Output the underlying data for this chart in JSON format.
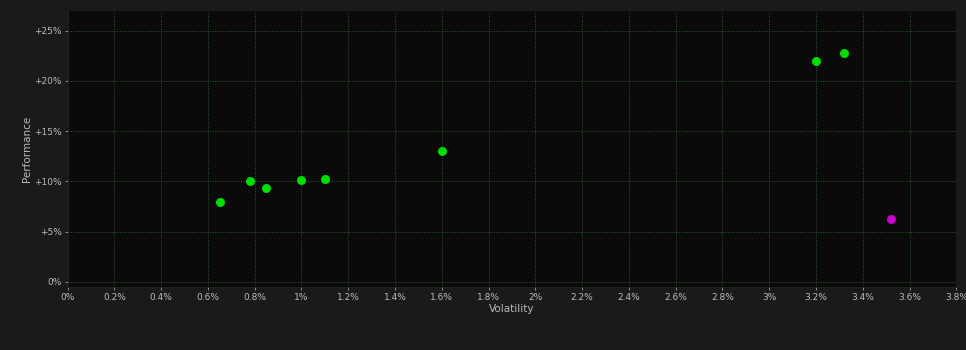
{
  "green_points": [
    [
      0.0065,
      0.08
    ],
    [
      0.0078,
      0.1
    ],
    [
      0.0085,
      0.093
    ],
    [
      0.01,
      0.101
    ],
    [
      0.011,
      0.102
    ],
    [
      0.016,
      0.13
    ],
    [
      0.032,
      0.22
    ],
    [
      0.0332,
      0.228
    ]
  ],
  "magenta_points": [
    [
      0.0352,
      0.063
    ]
  ],
  "green_color": "#00dd00",
  "magenta_color": "#cc00cc",
  "background_color": "#1a1a1a",
  "plot_bg_color": "#0a0a0a",
  "grid_color": "#2d5a2d",
  "tick_color": "#bbbbbb",
  "label_color": "#bbbbbb",
  "xlabel": "Volatility",
  "ylabel": "Performance",
  "xlim": [
    0.0,
    0.038
  ],
  "ylim": [
    -0.005,
    0.27
  ],
  "xticks": [
    0.0,
    0.002,
    0.004,
    0.006,
    0.008,
    0.01,
    0.012,
    0.014,
    0.016,
    0.018,
    0.02,
    0.022,
    0.024,
    0.026,
    0.028,
    0.03,
    0.032,
    0.034,
    0.036,
    0.038
  ],
  "xtick_labels": [
    "0%",
    "0.2%",
    "0.4%",
    "0.6%",
    "0.8%",
    "1%",
    "1.2%",
    "1.4%",
    "1.6%",
    "1.8%",
    "2%",
    "2.2%",
    "2.4%",
    "2.6%",
    "2.8%",
    "3%",
    "3.2%",
    "3.4%",
    "3.6%",
    "3.8%"
  ],
  "yticks": [
    0.0,
    0.05,
    0.1,
    0.15,
    0.2,
    0.25
  ],
  "ytick_labels": [
    "0%",
    "+5%",
    "+10%",
    "+15%",
    "+20%",
    "+25%"
  ],
  "marker_size": 42,
  "figsize": [
    9.66,
    3.5
  ],
  "dpi": 100
}
